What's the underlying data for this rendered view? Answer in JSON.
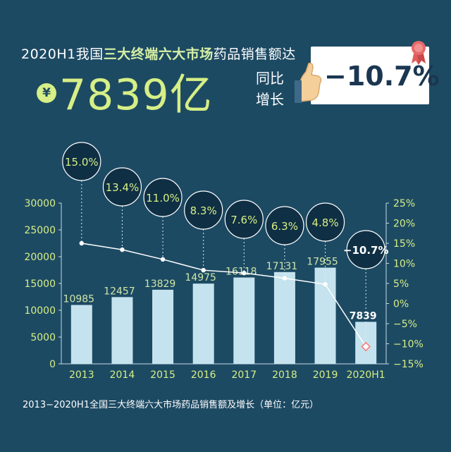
{
  "header": {
    "prefix": "2020H1我国",
    "highlight": "三大终端六大市场",
    "suffix": "药品销售额达",
    "currency_symbol": "¥",
    "amount": "7839亿",
    "yoy_label_line1": "同比",
    "yoy_label_line2": "增长",
    "yoy_value": "−10.7%"
  },
  "footnote": "2013−2020H1全国三大终端六大市场药品销售额及增长（单位：亿元）",
  "colors": {
    "background": "#1d4a63",
    "bar": "#c5e3ee",
    "accent": "#d6ef86",
    "line": "#ffffff",
    "bubble": "#0f2f44",
    "last_point": "#ff7373"
  },
  "chart_data": {
    "type": "bar",
    "categories": [
      "2013",
      "2014",
      "2015",
      "2016",
      "2017",
      "2018",
      "2019",
      "2020H1"
    ],
    "series": [
      {
        "values": [
          10985,
          12457,
          13829,
          14975,
          16118,
          17131,
          17955,
          7839
        ],
        "axis": "left"
      },
      {
        "type": "line",
        "values": [
          15.0,
          13.4,
          11.0,
          8.3,
          7.6,
          6.3,
          4.8,
          -10.7
        ],
        "axis": "right",
        "unit": "%"
      }
    ],
    "value_labels": [
      "10985",
      "12457",
      "13829",
      "14975",
      "16118",
      "17131",
      "17955",
      "7839"
    ],
    "growth_labels": [
      "15.0%",
      "13.4%",
      "11.0%",
      "8.3%",
      "7.6%",
      "6.3%",
      "4.8%",
      "−10.7%"
    ],
    "left_ticks": [
      "0",
      "5000",
      "10000",
      "15000",
      "20000",
      "25000",
      "30000"
    ],
    "right_ticks": [
      "25%",
      "20%",
      "15%",
      "10%",
      "5%",
      "0%",
      "−5%",
      "−10%",
      "−15%"
    ],
    "ylim": [
      0,
      30000
    ],
    "y2lim": [
      -15,
      25
    ],
    "grid": false
  }
}
